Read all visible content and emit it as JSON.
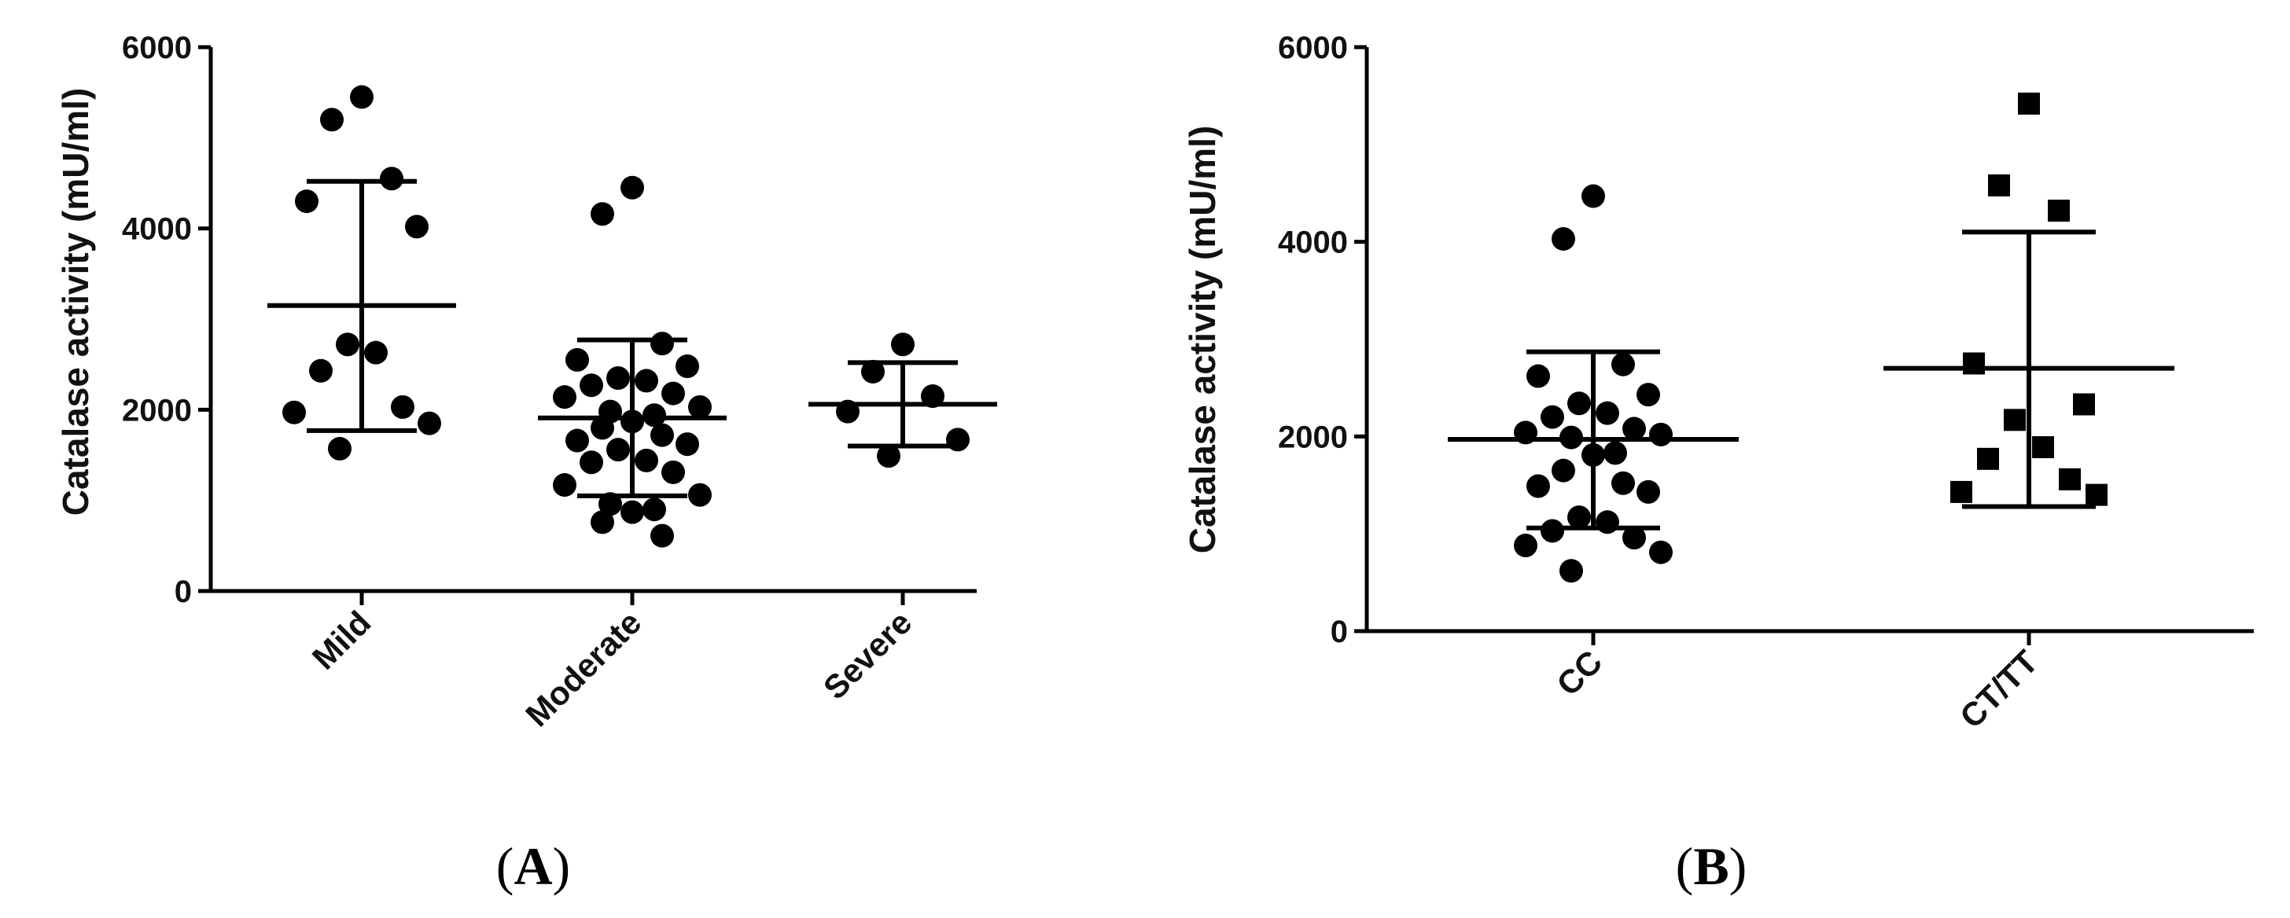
{
  "chart_data": [
    {
      "type": "scatter",
      "panel_label": "A",
      "ylabel": "Catalase activity (mU/ml)",
      "ylim": [
        0,
        6000
      ],
      "yticks": [
        0,
        2000,
        4000,
        6000
      ],
      "categories": [
        "Mild",
        "Moderate",
        "Severe"
      ],
      "marker": "circle",
      "groups": [
        {
          "category": "Mild",
          "values": [
            5450,
            5200,
            4550,
            4300,
            4020,
            2720,
            2630,
            2430,
            2030,
            1970,
            1850,
            1570
          ],
          "mean": 3150,
          "sd_upper": 4520,
          "sd_lower": 1770
        },
        {
          "category": "Moderate",
          "values": [
            4450,
            4160,
            2730,
            2550,
            2480,
            2350,
            2320,
            2270,
            2180,
            2140,
            2030,
            1980,
            1940,
            1870,
            1800,
            1720,
            1660,
            1620,
            1560,
            1440,
            1420,
            1310,
            1170,
            1060,
            960,
            900,
            870,
            760,
            610
          ],
          "mean": 1910,
          "sd_upper": 2770,
          "sd_lower": 1050
        },
        {
          "category": "Severe",
          "values": [
            2720,
            2420,
            2150,
            1980,
            1670,
            1490
          ],
          "mean": 2060,
          "sd_upper": 2520,
          "sd_lower": 1600
        }
      ]
    },
    {
      "type": "scatter",
      "panel_label": "B",
      "ylabel": "Catalase activity (mU/ml)",
      "ylim": [
        0,
        6000
      ],
      "yticks": [
        0,
        2000,
        4000,
        6000
      ],
      "categories": [
        "CC",
        "CT/TT"
      ],
      "groups": [
        {
          "category": "CC",
          "marker": "circle",
          "values": [
            4470,
            4030,
            2740,
            2620,
            2430,
            2340,
            2240,
            2200,
            2080,
            2040,
            2020,
            1990,
            1830,
            1810,
            1650,
            1520,
            1490,
            1430,
            1170,
            1120,
            1030,
            960,
            880,
            810,
            620
          ],
          "mean": 1970,
          "sd_upper": 2870,
          "sd_lower": 1060
        },
        {
          "category": "CT/TT",
          "marker": "square",
          "values": [
            5420,
            4580,
            4320,
            2750,
            2330,
            2170,
            1890,
            1770,
            1560,
            1430,
            1400
          ],
          "mean": 2700,
          "sd_upper": 4100,
          "sd_lower": 1280
        }
      ]
    }
  ]
}
